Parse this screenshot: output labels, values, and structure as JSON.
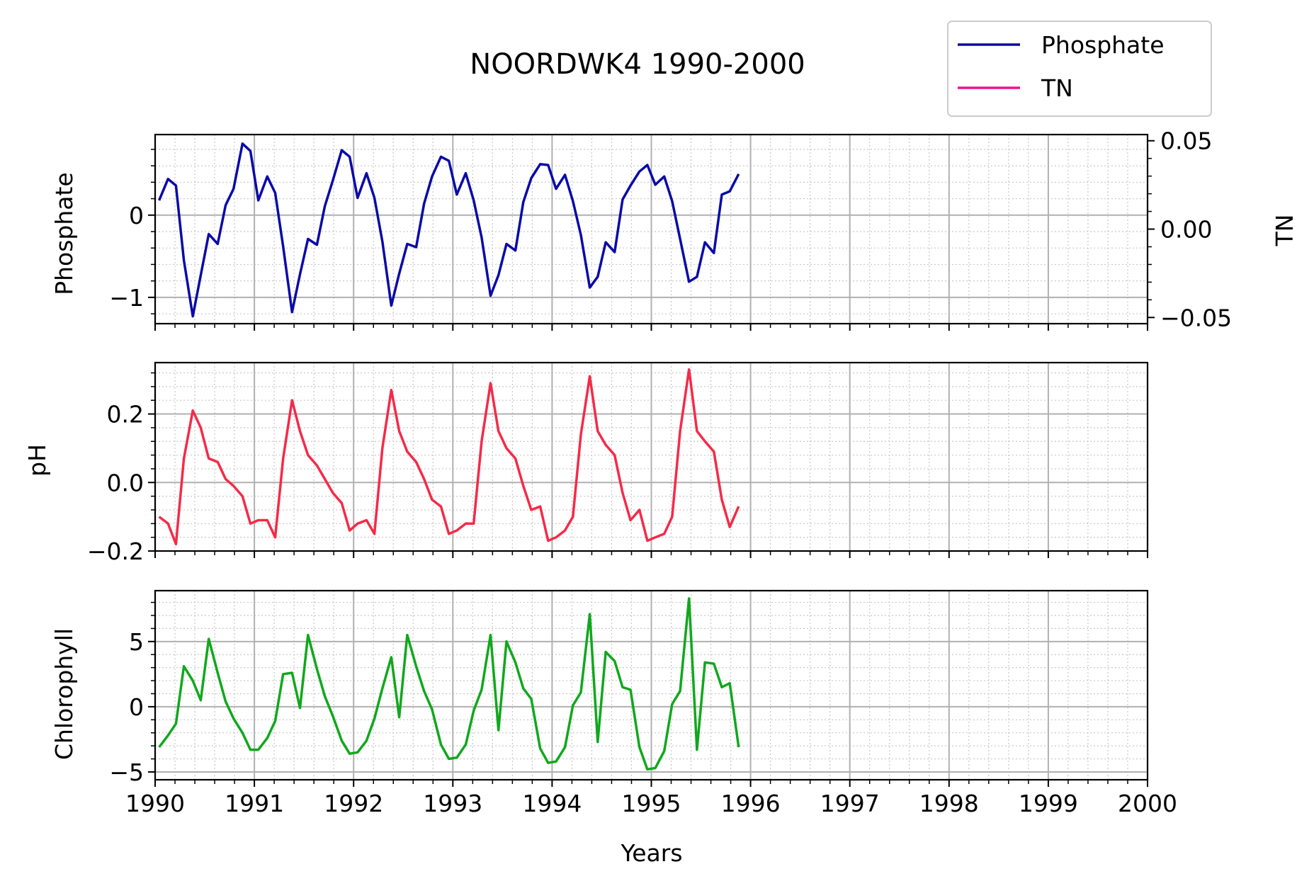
{
  "chart_data": {
    "type": "line",
    "title": "NOORDWK4 1990-2000",
    "xlabel": "Years",
    "xlim": [
      1990,
      2000
    ],
    "x_ticks": [
      "1990",
      "1991",
      "1992",
      "1993",
      "1994",
      "1995",
      "1996",
      "1997",
      "1998",
      "1999",
      "2000"
    ],
    "grid": true,
    "legend": {
      "placement": "top-right",
      "entries": [
        {
          "name": "Phosphate",
          "color": "#0a0aa8"
        },
        {
          "name": "TN",
          "color": "#f0148c"
        }
      ]
    },
    "panels": [
      {
        "ylabel": "Phosphate",
        "ylim": [
          -1.32,
          0.98
        ],
        "y_ticks": [
          {
            "value": 0,
            "label": "0"
          },
          {
            "value": -1,
            "label": "−1"
          }
        ],
        "secondary_axis": {
          "ylabel": "TN",
          "ylim": [
            -0.0535,
            0.0535
          ],
          "y_ticks": [
            {
              "value": 0.05,
              "label": "0.05"
            },
            {
              "value": 0,
              "label": "0.00"
            },
            {
              "value": -0.05,
              "label": "−0.05"
            }
          ]
        },
        "series": [
          {
            "name": "Phosphate",
            "color": "#0a0aa8",
            "x": [
              1990.04,
              1990.13,
              1990.21,
              1990.29,
              1990.38,
              1990.46,
              1990.54,
              1990.63,
              1990.71,
              1990.79,
              1990.88,
              1990.96,
              1991.04,
              1991.13,
              1991.21,
              1991.29,
              1991.38,
              1991.46,
              1991.54,
              1991.63,
              1991.71,
              1991.79,
              1991.88,
              1991.96,
              1992.04,
              1992.13,
              1992.21,
              1992.29,
              1992.38,
              1992.46,
              1992.54,
              1992.63,
              1992.71,
              1992.79,
              1992.88,
              1992.96,
              1993.04,
              1993.13,
              1993.21,
              1993.29,
              1993.38,
              1993.46,
              1993.54,
              1993.63,
              1993.71,
              1993.79,
              1993.88,
              1993.96,
              1994.04,
              1994.13,
              1994.21,
              1994.29,
              1994.38,
              1994.46,
              1994.54,
              1994.63,
              1994.71,
              1994.79,
              1994.88,
              1994.96,
              1995.04,
              1995.13,
              1995.21,
              1995.29,
              1995.38,
              1995.46,
              1995.54,
              1995.63,
              1995.71,
              1995.79,
              1995.88
            ],
            "values": [
              0.18,
              0.44,
              0.36,
              -0.55,
              -1.23,
              -0.73,
              -0.23,
              -0.35,
              0.12,
              0.32,
              0.87,
              0.78,
              0.18,
              0.47,
              0.27,
              -0.38,
              -1.18,
              -0.72,
              -0.29,
              -0.36,
              0.11,
              0.42,
              0.79,
              0.71,
              0.21,
              0.51,
              0.21,
              -0.32,
              -1.1,
              -0.71,
              -0.35,
              -0.39,
              0.14,
              0.47,
              0.71,
              0.66,
              0.25,
              0.51,
              0.18,
              -0.27,
              -0.98,
              -0.73,
              -0.35,
              -0.43,
              0.16,
              0.45,
              0.62,
              0.61,
              0.32,
              0.49,
              0.17,
              -0.24,
              -0.88,
              -0.75,
              -0.33,
              -0.45,
              0.19,
              0.36,
              0.53,
              0.61,
              0.37,
              0.47,
              0.17,
              -0.29,
              -0.81,
              -0.75,
              -0.33,
              -0.46,
              0.25,
              0.29,
              0.5
            ]
          }
        ]
      },
      {
        "ylabel": "pH",
        "ylim": [
          -0.2,
          0.35
        ],
        "y_ticks": [
          {
            "value": 0.2,
            "label": "0.2"
          },
          {
            "value": 0,
            "label": "0.0"
          },
          {
            "value": -0.2,
            "label": "−0.2"
          }
        ],
        "series": [
          {
            "name": "",
            "color": "#f52a48",
            "x": [
              1990.04,
              1990.13,
              1990.21,
              1990.29,
              1990.38,
              1990.46,
              1990.54,
              1990.63,
              1990.71,
              1990.79,
              1990.88,
              1990.96,
              1991.04,
              1991.13,
              1991.21,
              1991.29,
              1991.38,
              1991.46,
              1991.54,
              1991.63,
              1991.71,
              1991.79,
              1991.88,
              1991.96,
              1992.04,
              1992.13,
              1992.21,
              1992.29,
              1992.38,
              1992.46,
              1992.54,
              1992.63,
              1992.71,
              1992.79,
              1992.88,
              1992.96,
              1993.04,
              1993.13,
              1993.21,
              1993.29,
              1993.38,
              1993.46,
              1993.54,
              1993.63,
              1993.71,
              1993.79,
              1993.88,
              1993.96,
              1994.04,
              1994.13,
              1994.21,
              1994.29,
              1994.38,
              1994.46,
              1994.54,
              1994.63,
              1994.71,
              1994.79,
              1994.88,
              1994.96,
              1995.04,
              1995.13,
              1995.21,
              1995.29,
              1995.38,
              1995.46,
              1995.54,
              1995.63,
              1995.71,
              1995.79,
              1995.88
            ],
            "values": [
              -0.1,
              -0.12,
              -0.18,
              0.07,
              0.21,
              0.16,
              0.07,
              0.06,
              0.01,
              -0.01,
              -0.04,
              -0.12,
              -0.11,
              -0.11,
              -0.16,
              0.07,
              0.24,
              0.15,
              0.08,
              0.05,
              0.01,
              -0.03,
              -0.06,
              -0.14,
              -0.12,
              -0.11,
              -0.15,
              0.1,
              0.27,
              0.15,
              0.09,
              0.06,
              0.01,
              -0.05,
              -0.07,
              -0.15,
              -0.14,
              -0.12,
              -0.12,
              0.12,
              0.29,
              0.15,
              0.1,
              0.07,
              -0.01,
              -0.08,
              -0.07,
              -0.17,
              -0.16,
              -0.14,
              -0.1,
              0.14,
              0.31,
              0.15,
              0.11,
              0.08,
              -0.03,
              -0.11,
              -0.08,
              -0.17,
              -0.16,
              -0.15,
              -0.1,
              0.15,
              0.33,
              0.15,
              0.12,
              0.09,
              -0.05,
              -0.13,
              -0.07
            ]
          }
        ]
      },
      {
        "ylabel": "Chlorophyll",
        "ylim": [
          -5.6,
          8.9
        ],
        "y_ticks": [
          {
            "value": 5,
            "label": "5"
          },
          {
            "value": 0,
            "label": "0"
          },
          {
            "value": -5,
            "label": "−5"
          }
        ],
        "series": [
          {
            "name": "",
            "color": "#10a81c",
            "x": [
              1990.04,
              1990.13,
              1990.21,
              1990.29,
              1990.38,
              1990.46,
              1990.54,
              1990.63,
              1990.71,
              1990.79,
              1990.88,
              1990.96,
              1991.04,
              1991.13,
              1991.21,
              1991.29,
              1991.38,
              1991.46,
              1991.54,
              1991.63,
              1991.71,
              1991.79,
              1991.88,
              1991.96,
              1992.04,
              1992.13,
              1992.21,
              1992.29,
              1992.38,
              1992.46,
              1992.54,
              1992.63,
              1992.71,
              1992.79,
              1992.88,
              1992.96,
              1993.04,
              1993.13,
              1993.21,
              1993.29,
              1993.38,
              1993.46,
              1993.54,
              1993.63,
              1993.71,
              1993.79,
              1993.88,
              1993.96,
              1994.04,
              1994.13,
              1994.21,
              1994.29,
              1994.38,
              1994.46,
              1994.54,
              1994.63,
              1994.71,
              1994.79,
              1994.88,
              1994.96,
              1995.04,
              1995.13,
              1995.21,
              1995.29,
              1995.38,
              1995.46,
              1995.54,
              1995.63,
              1995.71,
              1995.79,
              1995.88
            ],
            "values": [
              -3.1,
              -2.2,
              -1.3,
              3.1,
              2.0,
              0.5,
              5.2,
              2.6,
              0.4,
              -0.9,
              -2.0,
              -3.3,
              -3.3,
              -2.4,
              -1.1,
              2.5,
              2.6,
              -0.1,
              5.5,
              2.9,
              0.8,
              -0.7,
              -2.6,
              -3.6,
              -3.5,
              -2.6,
              -0.9,
              1.4,
              3.8,
              -0.8,
              5.5,
              3.1,
              1.2,
              -0.2,
              -2.9,
              -4.0,
              -3.9,
              -2.9,
              -0.3,
              1.3,
              5.5,
              -1.8,
              5.0,
              3.4,
              1.4,
              0.6,
              -3.2,
              -4.3,
              -4.2,
              -3.1,
              0.1,
              1.1,
              7.1,
              -2.7,
              4.2,
              3.5,
              1.5,
              1.3,
              -3.1,
              -4.8,
              -4.7,
              -3.4,
              0.2,
              1.2,
              8.3,
              -3.3,
              3.4,
              3.3,
              1.5,
              1.8,
              -3.1
            ]
          }
        ]
      }
    ]
  }
}
